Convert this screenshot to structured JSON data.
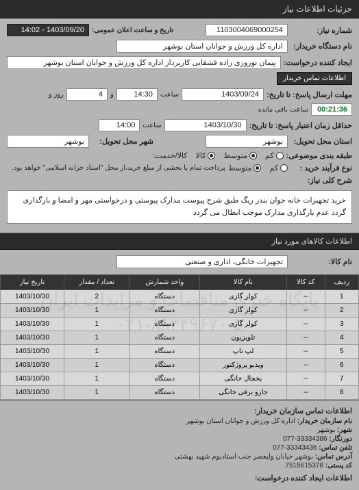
{
  "panel_title": "جزئیات اطلاعات نیاز",
  "fields": {
    "req_no_label": "شماره نیاز:",
    "req_no": "1103004069000254",
    "pub_date_label": "تاریخ و ساعت اعلان عمومی:",
    "pub_date": "1403/09/20 - 14:02",
    "buyer_label": "نام دستگاه خریدار:",
    "buyer": "اداره کل ورزش و جوانان استان بوشهر",
    "creator_label": "ایجاد کننده درخواست:",
    "creator": "پیمان نوروزی زاده قشقایی کارپرداز اداره کل ورزش و جوانان استان بوشهر",
    "contact_btn": "اطلاعات تماس خریدار",
    "deadline_label": "مهلت ارسال پاسخ: تا تاریخ:",
    "deadline_date": "1403/09/24",
    "hour_label": "ساعت",
    "deadline_time": "14:30",
    "and_label": "و",
    "days_label": "روز و",
    "days_left": "4",
    "countdown": "00:21:36",
    "remain_label": "ساعت باقی مانده",
    "valid_label": "حداقل زمان اعتبار پاسخ: تا تاریخ:",
    "valid_date": "1403/10/30",
    "valid_time": "14:00",
    "delivery_prov_label": "استان محل تحویل:",
    "delivery_prov": "بوشهر",
    "delivery_city_label": "شهر محل تحویل:",
    "delivery_city": "بوشهر",
    "budget_label": "طبقه بندی موضوعی:",
    "budget_opts": {
      "low": "کم",
      "med": "متوسط",
      "kala": "کالا",
      "service": "کالا/خدمت:"
    },
    "process_label": "نوع فرآیند خرید :",
    "process_opts": {
      "low": "کم",
      "med": "متوسط"
    },
    "process_note": "پرداخت تمام یا بخشی از مبلغ خرید،از محل \"اسناد خزانه اسلامی\" خواهد بود.",
    "desc_label": "شرح کلی نیاز:",
    "desc": "خرید تجهیزات خانه جوان بندر ریگ طبق شرح پیوست مدارک پیوستی و درخواستی مهر و امضا و بارگذاری گردد عدم بارگذاری مدارک موجب ابطال می گردد"
  },
  "goods_section": "اطلاعات کالاهای مورد نیاز",
  "goods_name_label": "نام کالا:",
  "goods_name_value": "تجهیزات خانگی، اداری و صنعتی",
  "table": {
    "cols": [
      "ردیف",
      "کد کالا",
      "نام کالا",
      "واحد شمارش",
      "تعداد / مقدار",
      "تاریخ نیاز"
    ],
    "rows": [
      [
        "1",
        "--",
        "کولر گازی",
        "دستگاه",
        "2",
        "1403/10/30"
      ],
      [
        "2",
        "--",
        "کولر گازی",
        "دستگاه",
        "1",
        "1403/10/30"
      ],
      [
        "3",
        "--",
        "کولر گازی",
        "دستگاه",
        "1",
        "1403/10/30"
      ],
      [
        "4",
        "--",
        "تلویزیون",
        "دستگاه",
        "1",
        "1403/10/30"
      ],
      [
        "5",
        "--",
        "لپ تاپ",
        "دستگاه",
        "1",
        "1403/10/30"
      ],
      [
        "6",
        "--",
        "ویدیو پروژکتور",
        "دستگاه",
        "1",
        "1403/10/30"
      ],
      [
        "7",
        "--",
        "یخچال خانگی",
        "دستگاه",
        "1",
        "1403/10/30"
      ],
      [
        "8",
        "--",
        "جارو برقی خانگی",
        "دستگاه",
        "1",
        "1403/10/30"
      ]
    ]
  },
  "watermark": {
    "l1": "پایگاه خبری مناقصات و مزایدات ایران",
    "l2": "۰۲۱-۸۸۳۴۹۶۷۰-۵"
  },
  "footer": {
    "title": "اطلاعات تماس سازمان خریدار:",
    "org_label": "نام سازمان خریدار:",
    "org": "اداره کل ورزش و جوانان استان بوشهر",
    "city_label": "شهر:",
    "city": "بوشهر",
    "fax_label": "دورنگار:",
    "fax": "33334386-077",
    "phone_label": "تلفن تماس:",
    "phone": "33343436-077",
    "addr_label": "آدرس تماس:",
    "addr": "بوشهر خیابان ولیعصر جنب استادیوم شهید بهشتی",
    "post_label": "کد پستی:",
    "post": "7515615378",
    "req_contact_title": "اطلاعات ایجاد کننده درخواست:"
  }
}
